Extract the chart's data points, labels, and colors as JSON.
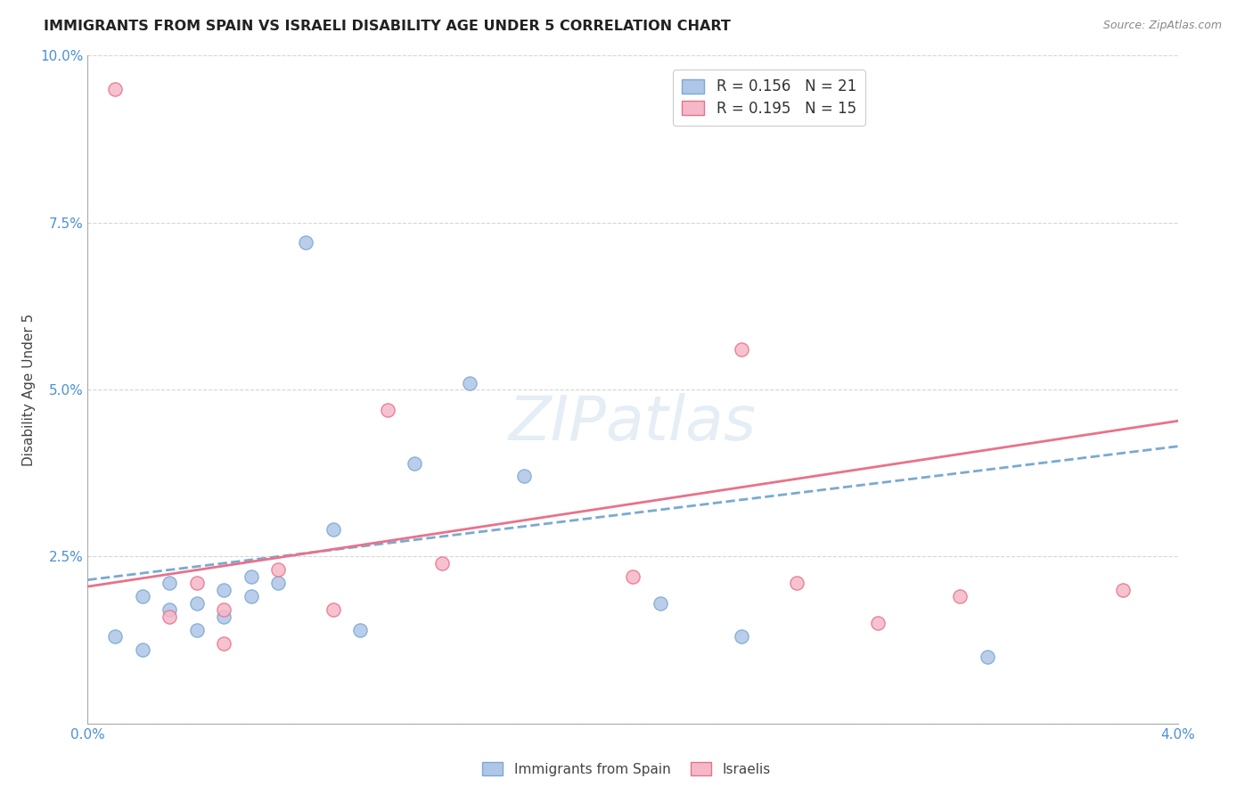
{
  "title": "IMMIGRANTS FROM SPAIN VS ISRAELI DISABILITY AGE UNDER 5 CORRELATION CHART",
  "source": "Source: ZipAtlas.com",
  "ylabel": "Disability Age Under 5",
  "xlabel": "",
  "watermark": "ZIPatlas",
  "xlim": [
    0.0,
    0.04
  ],
  "ylim": [
    0.0,
    0.1
  ],
  "blue_color": "#aec6e8",
  "pink_color": "#f5b8c8",
  "blue_line_color": "#7aaad0",
  "pink_line_color": "#e8728a",
  "R_blue": 0.156,
  "N_blue": 21,
  "R_pink": 0.195,
  "N_pink": 15,
  "blue_intercept": 0.0215,
  "blue_slope": 0.5,
  "pink_intercept": 0.0205,
  "pink_slope": 0.62,
  "scatter_blue_x": [
    0.001,
    0.002,
    0.002,
    0.003,
    0.003,
    0.004,
    0.004,
    0.005,
    0.005,
    0.006,
    0.006,
    0.007,
    0.008,
    0.009,
    0.01,
    0.012,
    0.014,
    0.016,
    0.021,
    0.024,
    0.033
  ],
  "scatter_blue_y": [
    0.013,
    0.011,
    0.019,
    0.017,
    0.021,
    0.018,
    0.014,
    0.02,
    0.016,
    0.019,
    0.022,
    0.021,
    0.072,
    0.029,
    0.014,
    0.039,
    0.051,
    0.037,
    0.018,
    0.013,
    0.01
  ],
  "scatter_pink_x": [
    0.001,
    0.003,
    0.004,
    0.005,
    0.005,
    0.007,
    0.009,
    0.011,
    0.013,
    0.02,
    0.024,
    0.026,
    0.029,
    0.032,
    0.038
  ],
  "scatter_pink_y": [
    0.095,
    0.016,
    0.021,
    0.017,
    0.012,
    0.023,
    0.017,
    0.047,
    0.024,
    0.022,
    0.056,
    0.021,
    0.015,
    0.019,
    0.02
  ],
  "grid_color": "#cccccc",
  "background_color": "#ffffff",
  "title_fontsize": 11.5,
  "axis_label_fontsize": 11,
  "tick_fontsize": 11,
  "marker_size": 120,
  "accent_color": "#4a90d9"
}
